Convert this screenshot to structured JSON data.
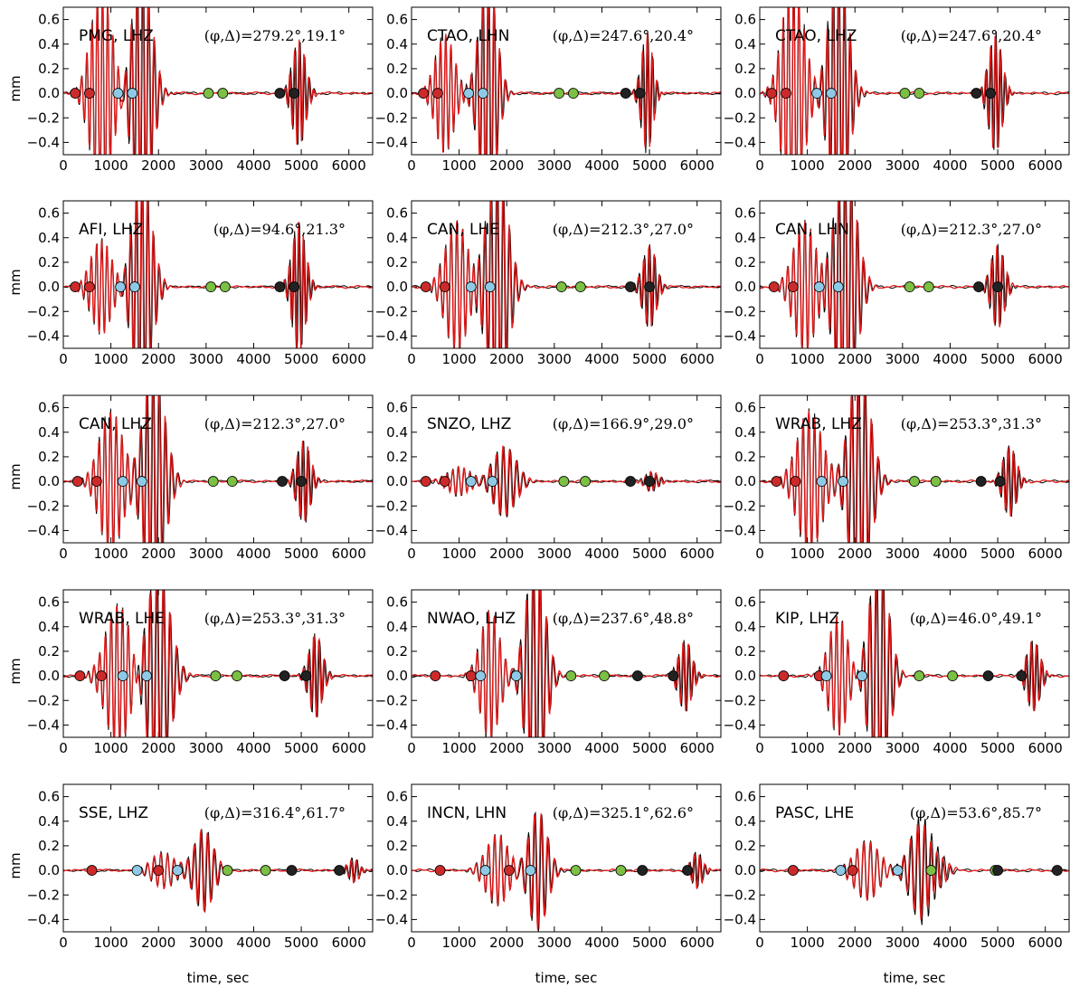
{
  "figure": {
    "ylabel": "mm",
    "xlabel": "time, sec",
    "colors": {
      "observed": "#000000",
      "synthetic": "#e21a1a",
      "red_marker": "#cc2a2a",
      "blue_marker": "#8ecae6",
      "green_marker": "#7bc043",
      "black_marker": "#222222"
    }
  },
  "chart_data": [
    {
      "type": "line",
      "station": "PMG, LHZ",
      "azimuth": "279.2",
      "distance": "19.1",
      "xlim": [
        0,
        6500
      ],
      "ylim": [
        -0.5,
        0.7
      ],
      "x_ticks": [
        0,
        1000,
        2000,
        3000,
        4000,
        5000,
        6000
      ],
      "y_ticks": [
        -0.4,
        -0.2,
        0.0,
        0.2,
        0.4,
        0.6
      ],
      "markers": {
        "red": [
          250,
          550
        ],
        "blue": [
          1150,
          1450
        ],
        "green": [
          3050,
          3350
        ],
        "black": [
          4550,
          4850
        ]
      },
      "bursts": [
        {
          "t": 800,
          "a": 0.9,
          "p": 110,
          "w": 550
        },
        {
          "t": 1650,
          "a": 1.1,
          "p": 120,
          "w": 500
        },
        {
          "t": 4950,
          "a": 0.45,
          "p": 100,
          "w": 350
        }
      ]
    },
    {
      "type": "line",
      "station": "CTAO, LHN",
      "azimuth": "247.6",
      "distance": "20.4",
      "xlim": [
        0,
        6500
      ],
      "ylim": [
        -0.5,
        0.7
      ],
      "x_ticks": [
        0,
        1000,
        2000,
        3000,
        4000,
        5000,
        6000
      ],
      "y_ticks": [
        -0.4,
        -0.2,
        0.0,
        0.2,
        0.4,
        0.6
      ],
      "markers": {
        "red": [
          250,
          550
        ],
        "blue": [
          1200,
          1500
        ],
        "green": [
          3100,
          3400
        ],
        "black": [
          4500,
          4800
        ]
      },
      "bursts": [
        {
          "t": 700,
          "a": 0.5,
          "p": 110,
          "w": 500
        },
        {
          "t": 1600,
          "a": 1.0,
          "p": 120,
          "w": 450
        },
        {
          "t": 4950,
          "a": 0.5,
          "p": 100,
          "w": 300
        }
      ]
    },
    {
      "type": "line",
      "station": "CTAO, LHZ",
      "azimuth": "247.6",
      "distance": "20.4",
      "xlim": [
        0,
        6500
      ],
      "ylim": [
        -0.5,
        0.7
      ],
      "x_ticks": [
        0,
        1000,
        2000,
        3000,
        4000,
        5000,
        6000
      ],
      "y_ticks": [
        -0.4,
        -0.2,
        0.0,
        0.2,
        0.4,
        0.6
      ],
      "markers": {
        "red": [
          250,
          550
        ],
        "blue": [
          1200,
          1500
        ],
        "green": [
          3050,
          3350
        ],
        "black": [
          4550,
          4850
        ]
      },
      "bursts": [
        {
          "t": 700,
          "a": 1.0,
          "p": 110,
          "w": 550
        },
        {
          "t": 1650,
          "a": 1.1,
          "p": 120,
          "w": 500
        },
        {
          "t": 4950,
          "a": 0.5,
          "p": 100,
          "w": 350
        }
      ]
    },
    {
      "type": "line",
      "station": "AFI, LHZ",
      "azimuth": "94.6",
      "distance": "21.3",
      "xlim": [
        0,
        6500
      ],
      "ylim": [
        -0.5,
        0.7
      ],
      "x_ticks": [
        0,
        1000,
        2000,
        3000,
        4000,
        5000,
        6000
      ],
      "y_ticks": [
        -0.4,
        -0.2,
        0.0,
        0.2,
        0.4,
        0.6
      ],
      "markers": {
        "red": [
          250,
          550
        ],
        "blue": [
          1200,
          1500
        ],
        "green": [
          3100,
          3400
        ],
        "black": [
          4550,
          4850
        ]
      },
      "bursts": [
        {
          "t": 800,
          "a": 0.4,
          "p": 110,
          "w": 550
        },
        {
          "t": 1650,
          "a": 1.0,
          "p": 120,
          "w": 500
        },
        {
          "t": 4950,
          "a": 0.55,
          "p": 100,
          "w": 350
        }
      ]
    },
    {
      "type": "line",
      "station": "CAN, LHE",
      "azimuth": "212.3",
      "distance": "27.0",
      "xlim": [
        0,
        6500
      ],
      "ylim": [
        -0.5,
        0.7
      ],
      "x_ticks": [
        0,
        1000,
        2000,
        3000,
        4000,
        5000,
        6000
      ],
      "y_ticks": [
        -0.4,
        -0.2,
        0.0,
        0.2,
        0.4,
        0.6
      ],
      "markers": {
        "red": [
          300,
          700
        ],
        "blue": [
          1250,
          1650
        ],
        "green": [
          3150,
          3550
        ],
        "black": [
          4600,
          5000
        ]
      },
      "bursts": [
        {
          "t": 950,
          "a": 0.55,
          "p": 120,
          "w": 600
        },
        {
          "t": 1800,
          "a": 1.0,
          "p": 130,
          "w": 550
        },
        {
          "t": 5000,
          "a": 0.35,
          "p": 110,
          "w": 350
        }
      ]
    },
    {
      "type": "line",
      "station": "CAN, LHN",
      "azimuth": "212.3",
      "distance": "27.0",
      "xlim": [
        0,
        6500
      ],
      "ylim": [
        -0.5,
        0.7
      ],
      "x_ticks": [
        0,
        1000,
        2000,
        3000,
        4000,
        5000,
        6000
      ],
      "y_ticks": [
        -0.4,
        -0.2,
        0.0,
        0.2,
        0.4,
        0.6
      ],
      "markers": {
        "red": [
          300,
          700
        ],
        "blue": [
          1250,
          1650
        ],
        "green": [
          3150,
          3550
        ],
        "black": [
          4600,
          5000
        ]
      },
      "bursts": [
        {
          "t": 950,
          "a": 0.55,
          "p": 120,
          "w": 600
        },
        {
          "t": 1800,
          "a": 1.1,
          "p": 130,
          "w": 550
        },
        {
          "t": 5000,
          "a": 0.35,
          "p": 110,
          "w": 350
        }
      ]
    },
    {
      "type": "line",
      "station": "CAN, LHZ",
      "azimuth": "212.3",
      "distance": "27.0",
      "xlim": [
        0,
        6500
      ],
      "ylim": [
        -0.5,
        0.7
      ],
      "x_ticks": [
        0,
        1000,
        2000,
        3000,
        4000,
        5000,
        6000
      ],
      "y_ticks": [
        -0.4,
        -0.2,
        0.0,
        0.2,
        0.4,
        0.6
      ],
      "markers": {
        "red": [
          300,
          700
        ],
        "blue": [
          1250,
          1650
        ],
        "green": [
          3150,
          3550
        ],
        "black": [
          4600,
          5000
        ]
      },
      "bursts": [
        {
          "t": 1000,
          "a": 0.6,
          "p": 120,
          "w": 600
        },
        {
          "t": 1900,
          "a": 1.0,
          "p": 130,
          "w": 550
        },
        {
          "t": 5050,
          "a": 0.35,
          "p": 110,
          "w": 350
        }
      ]
    },
    {
      "type": "line",
      "station": "SNZO, LHZ",
      "azimuth": "166.9",
      "distance": "29.0",
      "xlim": [
        0,
        6500
      ],
      "ylim": [
        -0.5,
        0.7
      ],
      "x_ticks": [
        0,
        1000,
        2000,
        3000,
        4000,
        5000,
        6000
      ],
      "y_ticks": [
        -0.4,
        -0.2,
        0.0,
        0.2,
        0.4,
        0.6
      ],
      "markers": {
        "red": [
          300,
          700
        ],
        "blue": [
          1250,
          1700
        ],
        "green": [
          3200,
          3650
        ],
        "black": [
          4600,
          5000
        ]
      },
      "bursts": [
        {
          "t": 1000,
          "a": 0.12,
          "p": 120,
          "w": 600
        },
        {
          "t": 1950,
          "a": 0.3,
          "p": 140,
          "w": 600
        },
        {
          "t": 5050,
          "a": 0.08,
          "p": 110,
          "w": 350
        }
      ]
    },
    {
      "type": "line",
      "station": "WRAB, LHZ",
      "azimuth": "253.3",
      "distance": "31.3",
      "xlim": [
        0,
        6500
      ],
      "ylim": [
        -0.5,
        0.7
      ],
      "x_ticks": [
        0,
        1000,
        2000,
        3000,
        4000,
        5000,
        6000
      ],
      "y_ticks": [
        -0.4,
        -0.2,
        0.0,
        0.2,
        0.4,
        0.6
      ],
      "markers": {
        "red": [
          350,
          750
        ],
        "blue": [
          1300,
          1750
        ],
        "green": [
          3250,
          3700
        ],
        "black": [
          4650,
          5050
        ]
      },
      "bursts": [
        {
          "t": 1050,
          "a": 0.6,
          "p": 120,
          "w": 650
        },
        {
          "t": 2100,
          "a": 1.0,
          "p": 140,
          "w": 550
        },
        {
          "t": 5250,
          "a": 0.3,
          "p": 110,
          "w": 350
        }
      ]
    },
    {
      "type": "line",
      "station": "WRAB, LHE",
      "azimuth": "253.3",
      "distance": "31.3",
      "xlim": [
        0,
        6500
      ],
      "ylim": [
        -0.5,
        0.7
      ],
      "x_ticks": [
        0,
        1000,
        2000,
        3000,
        4000,
        5000,
        6000
      ],
      "y_ticks": [
        -0.4,
        -0.2,
        0.0,
        0.2,
        0.4,
        0.6
      ],
      "markers": {
        "red": [
          350,
          800
        ],
        "blue": [
          1250,
          1750
        ],
        "green": [
          3200,
          3650
        ],
        "black": [
          4650,
          5100
        ]
      },
      "bursts": [
        {
          "t": 1150,
          "a": 0.6,
          "p": 120,
          "w": 650
        },
        {
          "t": 2000,
          "a": 0.9,
          "p": 140,
          "w": 600
        },
        {
          "t": 5300,
          "a": 0.35,
          "p": 110,
          "w": 350
        }
      ]
    },
    {
      "type": "line",
      "station": "NWAO, LHZ",
      "azimuth": "237.6",
      "distance": "48.8",
      "xlim": [
        0,
        6500
      ],
      "ylim": [
        -0.5,
        0.7
      ],
      "x_ticks": [
        0,
        1000,
        2000,
        3000,
        4000,
        5000,
        6000
      ],
      "y_ticks": [
        -0.4,
        -0.2,
        0.0,
        0.2,
        0.4,
        0.6
      ],
      "markers": {
        "red": [
          500,
          1250
        ],
        "blue": [
          1450,
          2200
        ],
        "green": [
          3350,
          4050
        ],
        "black": [
          4750,
          5500
        ]
      },
      "bursts": [
        {
          "t": 1650,
          "a": 0.55,
          "p": 120,
          "w": 500
        },
        {
          "t": 2600,
          "a": 1.0,
          "p": 140,
          "w": 500
        },
        {
          "t": 5750,
          "a": 0.3,
          "p": 110,
          "w": 350
        }
      ]
    },
    {
      "type": "line",
      "station": "KIP, LHZ",
      "azimuth": "46.0",
      "distance": "49.1",
      "xlim": [
        0,
        6500
      ],
      "ylim": [
        -0.5,
        0.7
      ],
      "x_ticks": [
        0,
        1000,
        2000,
        3000,
        4000,
        5000,
        6000
      ],
      "y_ticks": [
        -0.4,
        -0.2,
        0.0,
        0.2,
        0.4,
        0.6
      ],
      "markers": {
        "red": [
          500,
          1250
        ],
        "blue": [
          1400,
          2150
        ],
        "green": [
          3350,
          4050
        ],
        "black": [
          4800,
          5500
        ]
      },
      "bursts": [
        {
          "t": 1650,
          "a": 0.5,
          "p": 120,
          "w": 500
        },
        {
          "t": 2500,
          "a": 1.0,
          "p": 140,
          "w": 500
        },
        {
          "t": 5750,
          "a": 0.3,
          "p": 110,
          "w": 350
        }
      ]
    },
    {
      "type": "line",
      "station": "SSE, LHZ",
      "azimuth": "316.4",
      "distance": "61.7",
      "xlim": [
        0,
        6500
      ],
      "ylim": [
        -0.5,
        0.7
      ],
      "x_ticks": [
        0,
        1000,
        2000,
        3000,
        4000,
        5000,
        6000
      ],
      "y_ticks": [
        -0.4,
        -0.2,
        0.0,
        0.2,
        0.4,
        0.6
      ],
      "markers": {
        "red": [
          600,
          2000
        ],
        "blue": [
          1550,
          2400
        ],
        "green": [
          3450,
          4250
        ],
        "black": [
          4800,
          5800
        ]
      },
      "bursts": [
        {
          "t": 2100,
          "a": 0.15,
          "p": 140,
          "w": 600
        },
        {
          "t": 2950,
          "a": 0.35,
          "p": 140,
          "w": 500
        },
        {
          "t": 6100,
          "a": 0.1,
          "p": 110,
          "w": 300
        }
      ]
    },
    {
      "type": "line",
      "station": "INCN, LHN",
      "azimuth": "325.1",
      "distance": "62.6",
      "xlim": [
        0,
        6500
      ],
      "ylim": [
        -0.5,
        0.7
      ],
      "x_ticks": [
        0,
        1000,
        2000,
        3000,
        4000,
        5000,
        6000
      ],
      "y_ticks": [
        -0.4,
        -0.2,
        0.0,
        0.2,
        0.4,
        0.6
      ],
      "markers": {
        "red": [
          600,
          2050
        ],
        "blue": [
          1550,
          2500
        ],
        "green": [
          3450,
          4400
        ],
        "black": [
          4850,
          5800
        ]
      },
      "bursts": [
        {
          "t": 1800,
          "a": 0.3,
          "p": 130,
          "w": 600
        },
        {
          "t": 2650,
          "a": 0.5,
          "p": 140,
          "w": 500
        },
        {
          "t": 6000,
          "a": 0.15,
          "p": 110,
          "w": 300
        }
      ]
    },
    {
      "type": "line",
      "station": "PASC, LHE",
      "azimuth": "53.6",
      "distance": "85.7",
      "xlim": [
        0,
        6500
      ],
      "ylim": [
        -0.5,
        0.7
      ],
      "x_ticks": [
        0,
        1000,
        2000,
        3000,
        4000,
        5000,
        6000
      ],
      "y_ticks": [
        -0.4,
        -0.2,
        0.0,
        0.2,
        0.4,
        0.6
      ],
      "markers": {
        "red": [
          700,
          1950
        ],
        "blue": [
          1700,
          2900
        ],
        "green": [
          3600,
          4950
        ],
        "black": [
          5000,
          6250
        ]
      },
      "bursts": [
        {
          "t": 2250,
          "a": 0.25,
          "p": 140,
          "w": 650
        },
        {
          "t": 3400,
          "a": 0.4,
          "p": 150,
          "w": 600
        },
        {
          "t": 3650,
          "a": 0.3,
          "p": 140,
          "w": 500
        }
      ]
    }
  ]
}
